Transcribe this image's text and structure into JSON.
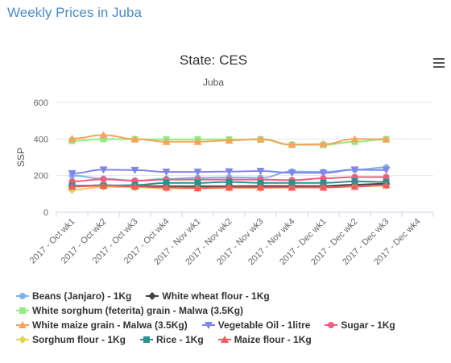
{
  "page_title": "Weekly Prices in Juba",
  "chart_data": {
    "type": "line",
    "title": "State: CES",
    "subtitle": "Juba",
    "ylabel": "SSP",
    "xlabel": "",
    "ylim": [
      0,
      600
    ],
    "yticks": [
      0,
      200,
      400,
      600
    ],
    "categories": [
      "2017 - Oct wk1",
      "2017 - Oct wk2",
      "2017 - Oct wk3",
      "2017 - Oct wk4",
      "2017 - Nov wk1",
      "2017 - Nov wk2",
      "2017 - Nov wk3",
      "2017 - Nov wk4",
      "2017 - Dec wk1",
      "2017 - Dec wk2",
      "2017 - Dec wk3",
      "2017 - Dec wk4"
    ],
    "grid": true,
    "legend_position": "bottom",
    "series": [
      {
        "name": "Beans (Janjaro) - 1Kg",
        "color": "#7cb5ec",
        "marker": "circle",
        "values": [
          200,
          183,
          172,
          182,
          188,
          190,
          188,
          222,
          220,
          232,
          245,
          null
        ]
      },
      {
        "name": "White wheat flour - 1Kg",
        "color": "#434348",
        "marker": "diamond",
        "values": [
          142,
          147,
          143,
          142,
          142,
          142,
          143,
          143,
          143,
          150,
          155,
          null
        ]
      },
      {
        "name": "White sorghum (feterita) grain - Malwa (3.5Kg)",
        "color": "#90ed7d",
        "marker": "square",
        "values": [
          390,
          400,
          398,
          398,
          398,
          398,
          397,
          368,
          368,
          385,
          398,
          null
        ]
      },
      {
        "name": "White maize grain - Malwa (3.5Kg)",
        "color": "#f7a35c",
        "marker": "triangle",
        "values": [
          402,
          422,
          400,
          385,
          385,
          392,
          400,
          370,
          372,
          400,
          400,
          null
        ]
      },
      {
        "name": "Vegetable Oil - 1litre",
        "color": "#8085e9",
        "marker": "triangle-down",
        "values": [
          212,
          232,
          230,
          220,
          220,
          222,
          225,
          215,
          215,
          232,
          230,
          null
        ]
      },
      {
        "name": "Sugar - 1Kg",
        "color": "#f15c80",
        "marker": "circle",
        "values": [
          168,
          180,
          172,
          178,
          178,
          178,
          178,
          175,
          185,
          192,
          192,
          null
        ]
      },
      {
        "name": "Sorghum flour - 1Kg",
        "color": "#e4d354",
        "marker": "diamond",
        "values": [
          122,
          138,
          135,
          130,
          130,
          132,
          132,
          135,
          135,
          140,
          145,
          null
        ]
      },
      {
        "name": "Rice - 1Kg",
        "color": "#2b908f",
        "marker": "square",
        "values": [
          145,
          145,
          148,
          160,
          160,
          165,
          160,
          160,
          160,
          168,
          165,
          null
        ]
      },
      {
        "name": "Maize flour - 1Kg",
        "color": "#f45b5b",
        "marker": "triangle",
        "values": [
          140,
          145,
          140,
          135,
          132,
          135,
          135,
          135,
          135,
          140,
          148,
          null
        ]
      }
    ]
  }
}
